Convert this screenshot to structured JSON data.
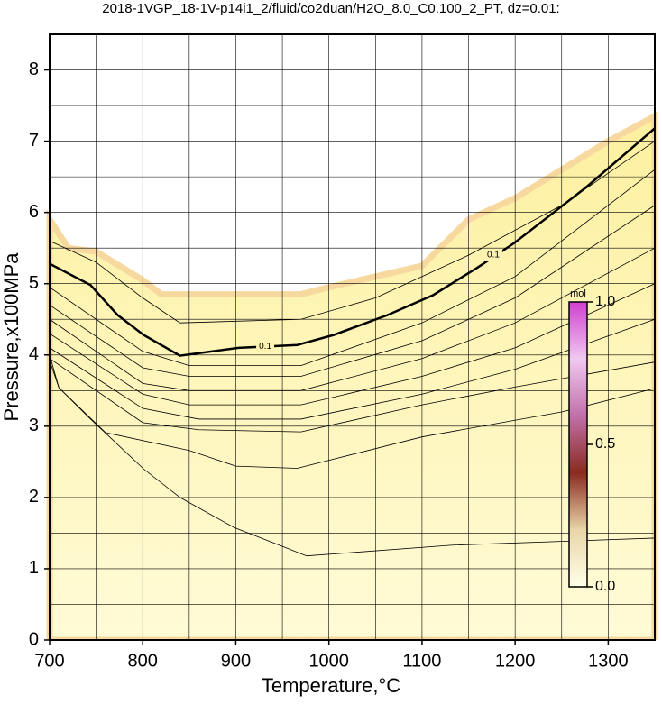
{
  "chart_data": {
    "type": "contour",
    "title": "2018-1VGP_18-1V-p14i1_2/fluid/co2duan/H2O_8.0_C0.100_2_PT, dz=0.01:",
    "xlabel": "Temperature,°C",
    "ylabel": "Pressure,x100MPa",
    "xlim": [
      700,
      1350
    ],
    "ylim": [
      0,
      8.5
    ],
    "xticks": [
      700,
      800,
      900,
      1000,
      1100,
      1200,
      1300
    ],
    "yticks": [
      0,
      1,
      2,
      3,
      4,
      5,
      6,
      7,
      8
    ],
    "xgrid": [
      750,
      800,
      850,
      900,
      950,
      1000,
      1050,
      1100,
      1150,
      1200,
      1250,
      1300
    ],
    "ygrid": [
      0.5,
      1,
      1.5,
      2,
      2.5,
      3,
      3.5,
      4,
      4.5,
      5,
      5.5,
      6,
      6.5,
      7,
      7.5,
      8
    ],
    "field": {
      "color": "#f7d9a0",
      "x": [
        700,
        720,
        750,
        800,
        820,
        970,
        1000,
        1050,
        1100,
        1150,
        1200,
        1250,
        1300,
        1350
      ],
      "values": [
        5.9,
        5.5,
        5.45,
        5.05,
        4.85,
        4.85,
        4.95,
        5.1,
        5.25,
        5.9,
        6.2,
        6.6,
        7.0,
        7.35
      ]
    },
    "contours": [
      {
        "level": 0.1,
        "color": "#000000",
        "x": [
          700,
          744,
          773,
          801,
          840,
          903,
          966,
          1005,
          1063,
          1112,
          1160,
          1199,
          1276,
          1350
        ],
        "values": [
          5.28,
          4.98,
          4.56,
          4.28,
          3.99,
          4.1,
          4.14,
          4.28,
          4.56,
          4.84,
          5.23,
          5.57,
          6.35,
          7.18
        ]
      },
      {
        "color": "#000000",
        "x": [
          700,
          750,
          800,
          840,
          970,
          1050,
          1150,
          1250,
          1350
        ],
        "values": [
          5.6,
          5.3,
          4.8,
          4.45,
          4.5,
          4.8,
          5.4,
          6.1,
          7.0
        ]
      },
      {
        "color": "#000000",
        "x": [
          700,
          800,
          850,
          970,
          1100,
          1200,
          1350
        ],
        "values": [
          4.95,
          4.05,
          3.85,
          3.85,
          4.45,
          5.1,
          6.6
        ]
      },
      {
        "color": "#000000",
        "x": [
          700,
          800,
          850,
          970,
          1100,
          1200,
          1350
        ],
        "values": [
          4.7,
          3.82,
          3.7,
          3.7,
          4.2,
          4.8,
          6.1
        ]
      },
      {
        "color": "#000000",
        "x": [
          700,
          800,
          850,
          970,
          1100,
          1200,
          1350
        ],
        "values": [
          4.5,
          3.6,
          3.5,
          3.5,
          3.95,
          4.45,
          5.5
        ]
      },
      {
        "color": "#000000",
        "x": [
          700,
          800,
          850,
          970,
          1100,
          1200,
          1350
        ],
        "values": [
          4.3,
          3.45,
          3.3,
          3.3,
          3.7,
          4.1,
          5.0
        ]
      },
      {
        "color": "#000000",
        "x": [
          700,
          800,
          860,
          970,
          1100,
          1200,
          1350
        ],
        "values": [
          4.1,
          3.25,
          3.1,
          3.1,
          3.45,
          3.8,
          4.5
        ]
      },
      {
        "color": "#000000",
        "x": [
          700,
          800,
          860,
          970,
          1100,
          1200,
          1350
        ],
        "values": [
          3.95,
          3.05,
          2.95,
          2.92,
          3.3,
          3.55,
          3.9
        ]
      },
      {
        "color": "#000000",
        "x": [
          700,
          710,
          760,
          850,
          900,
          966,
          1100,
          1250,
          1350
        ],
        "values": [
          3.92,
          3.54,
          2.91,
          2.66,
          2.44,
          2.41,
          2.85,
          3.2,
          3.53
        ]
      },
      {
        "color": "#000000",
        "x": [
          700,
          710,
          744,
          801,
          840,
          898,
          947,
          976,
          1131,
          1350
        ],
        "values": [
          4.0,
          3.54,
          3.1,
          2.4,
          2.0,
          1.58,
          1.33,
          1.18,
          1.33,
          1.43
        ]
      }
    ],
    "colorbar": {
      "label": "mol",
      "lim": [
        0,
        1
      ],
      "ticks": [
        {
          "value": 0,
          "label": "0.0"
        },
        0.5,
        {
          "value": 1,
          "label": "1.0"
        }
      ],
      "colors": [
        "#ffffe8",
        "#e9d6a8",
        "#8a2a1e",
        "#c070a8",
        "#f0c8f0",
        "#d040d0"
      ]
    }
  }
}
